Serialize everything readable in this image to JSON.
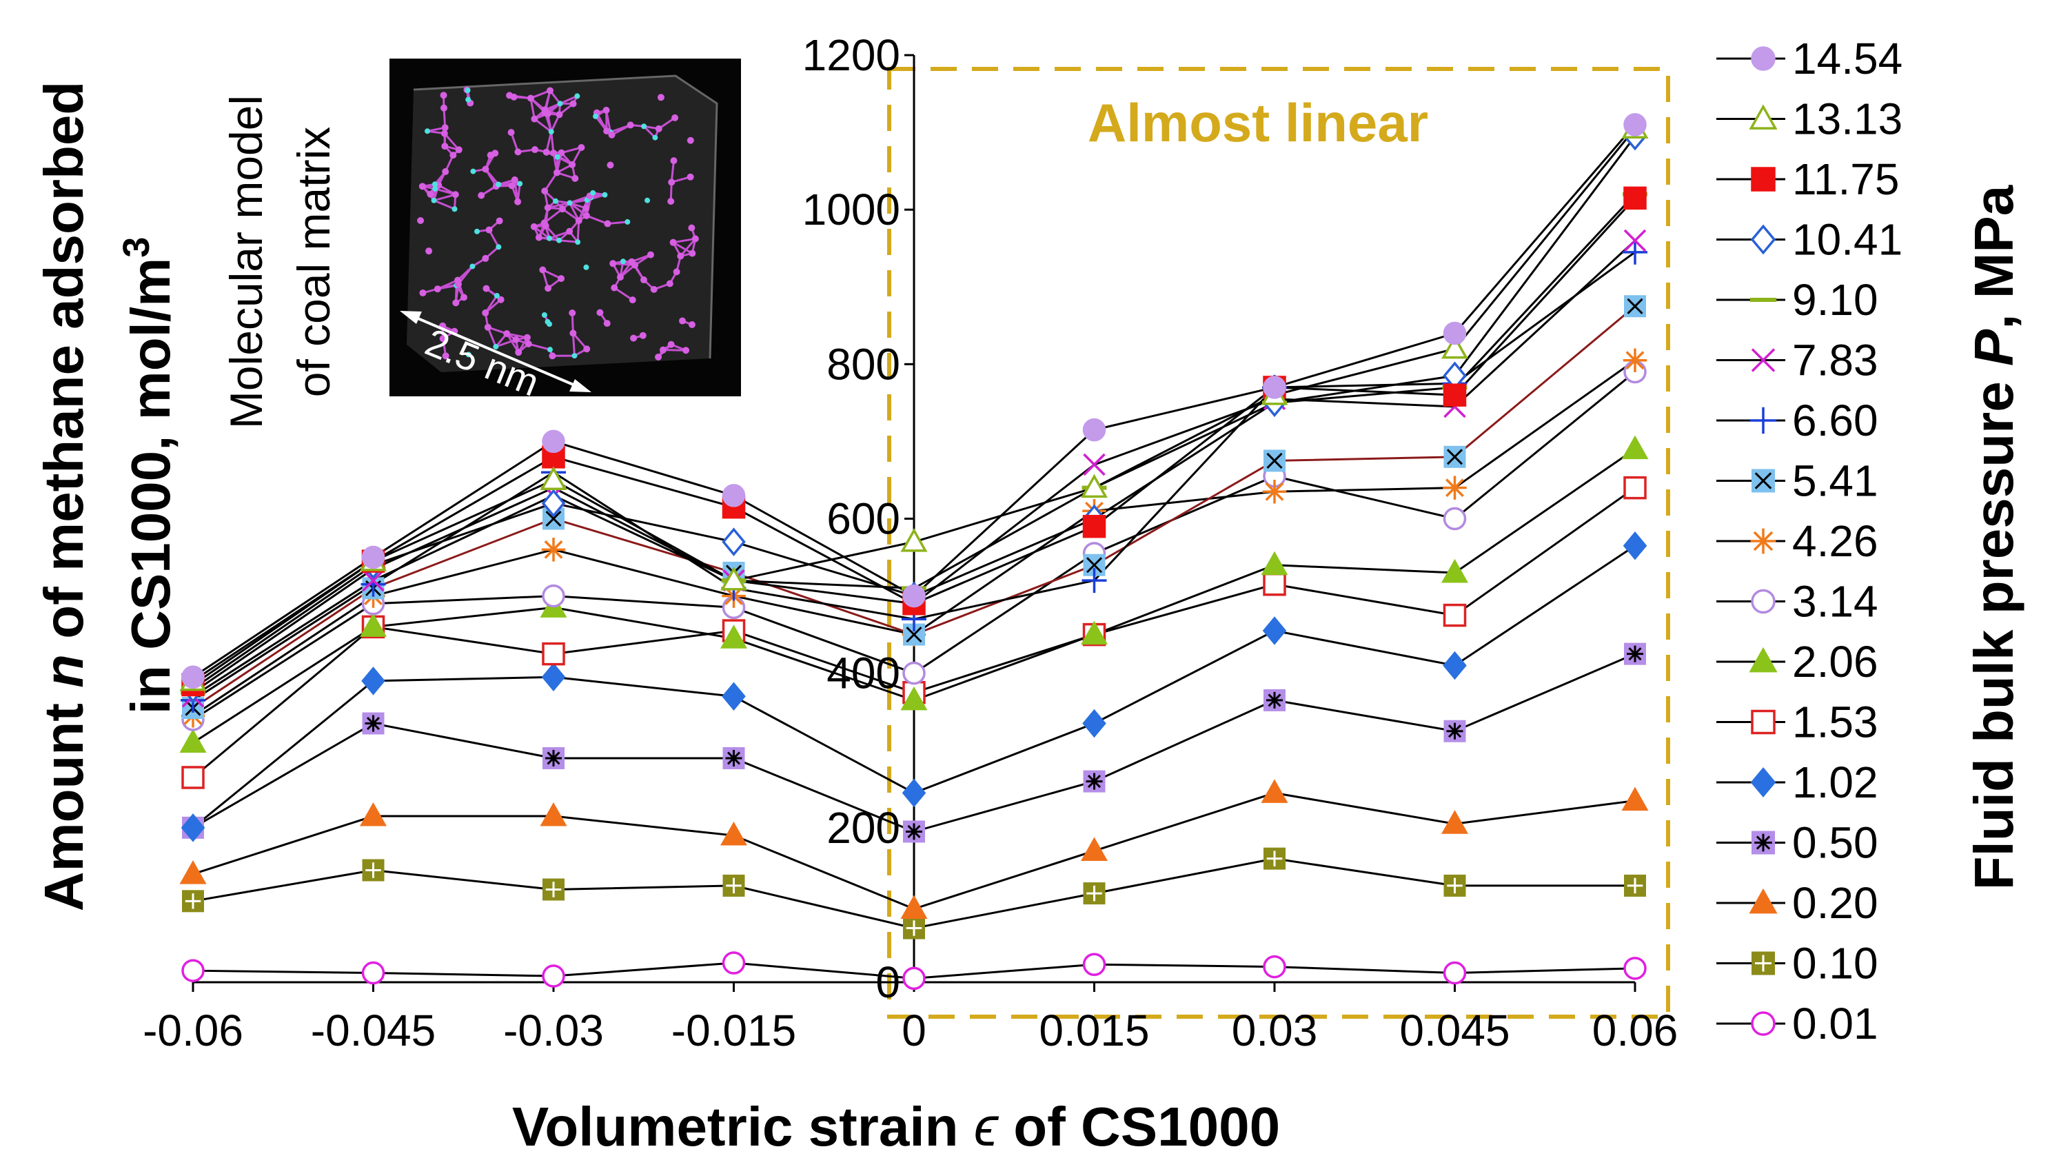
{
  "chart_data": {
    "type": "line",
    "x": [
      -0.06,
      -0.045,
      -0.03,
      -0.015,
      0,
      0.015,
      0.03,
      0.045,
      0.06
    ],
    "x_tick_labels": [
      "-0.06",
      "-0.045",
      "-0.03",
      "-0.015",
      "0",
      "0.015",
      "0.03",
      "0.045",
      "0.06"
    ],
    "y_ticks": [
      0,
      200,
      400,
      600,
      800,
      1000,
      1200
    ],
    "xlim": [
      -0.06,
      0.06
    ],
    "ylim": [
      0,
      1200
    ],
    "xlabel": "Volumetric strain ϵ of CS1000",
    "ylabel_line1": "Amount n of methane adsorbed",
    "ylabel_line2": "in CS1000, mol/m3",
    "ylabel_parts": [
      "Amount ",
      "n",
      " of methane adsorbed"
    ],
    "ylabel2_parts": [
      "in CS1000, mol/m",
      "3"
    ],
    "xlabel_parts": [
      "Volumetric strain ",
      "ϵ",
      " of CS1000"
    ],
    "legend_title": "Fluid bulk pressure P, MPa",
    "legend_title_parts": [
      "Fluid bulk pressure ",
      "P",
      ", MPa"
    ],
    "legend_position": "right",
    "annotation": "Almost linear",
    "annotation_color": "#d4aa1c",
    "inset": {
      "title_line1": "Molecular model",
      "title_line2": "of coal matrix",
      "scale_label": "2.5 nm"
    },
    "series": [
      {
        "name": "14.54",
        "marker": "circle",
        "color": "#c39bea",
        "fill": true,
        "line": "#000000",
        "values": [
          395,
          550,
          700,
          630,
          500,
          715,
          770,
          840,
          1110
        ]
      },
      {
        "name": "13.13",
        "marker": "triangle",
        "color": "#8db31a",
        "fill": false,
        "line": "#000000",
        "values": [
          390,
          545,
          650,
          520,
          570,
          640,
          760,
          820,
          1105
        ]
      },
      {
        "name": "11.75",
        "marker": "square",
        "color": "#ee1111",
        "fill": true,
        "line": "#000000",
        "values": [
          385,
          545,
          680,
          615,
          490,
          590,
          770,
          760,
          1015
        ]
      },
      {
        "name": "10.41",
        "marker": "diamond",
        "color": "#2a60d8",
        "fill": false,
        "line": "#000000",
        "values": [
          380,
          540,
          620,
          570,
          500,
          600,
          750,
          785,
          1095
        ]
      },
      {
        "name": "9.10",
        "marker": "hline",
        "color": "#8db31a",
        "fill": false,
        "line": "#000000",
        "values": [
          375,
          535,
          640,
          520,
          510,
          640,
          750,
          770,
          1020
        ]
      },
      {
        "name": "7.83",
        "marker": "x",
        "color": "#d020d0",
        "fill": false,
        "line": "#000000",
        "values": [
          370,
          520,
          630,
          520,
          490,
          670,
          755,
          745,
          960
        ]
      },
      {
        "name": "6.60",
        "marker": "plus",
        "color": "#1a3fd8",
        "fill": false,
        "line": "#000000",
        "values": [
          365,
          515,
          660,
          510,
          470,
          520,
          770,
          775,
          945
        ]
      },
      {
        "name": "5.41",
        "marker": "sqx",
        "color": "#7ec1ee",
        "fill": true,
        "line": "#8b1a1a",
        "values": [
          355,
          510,
          600,
          530,
          450,
          540,
          675,
          680,
          875
        ]
      },
      {
        "name": "4.26",
        "marker": "star",
        "color": "#f07a1a",
        "fill": false,
        "line": "#000000",
        "values": [
          345,
          500,
          560,
          500,
          450,
          610,
          635,
          640,
          805
        ]
      },
      {
        "name": "3.14",
        "marker": "circle",
        "color": "#b28adf",
        "fill": false,
        "line": "#000000",
        "values": [
          340,
          490,
          500,
          485,
          400,
          555,
          655,
          600,
          790
        ]
      },
      {
        "name": "2.06",
        "marker": "triangle",
        "color": "#8bc31a",
        "fill": true,
        "line": "#000000",
        "values": [
          310,
          460,
          485,
          445,
          365,
          450,
          540,
          530,
          690
        ]
      },
      {
        "name": "1.53",
        "marker": "square",
        "color": "#dd2222",
        "fill": false,
        "line": "#000000",
        "values": [
          265,
          460,
          425,
          455,
          375,
          450,
          515,
          475,
          640
        ]
      },
      {
        "name": "1.02",
        "marker": "diamond",
        "color": "#2a70e0",
        "fill": true,
        "line": "#000000",
        "values": [
          200,
          390,
          395,
          370,
          245,
          335,
          455,
          410,
          565
        ]
      },
      {
        "name": "0.50",
        "marker": "sqstar",
        "color": "#b48ee8",
        "fill": true,
        "line": "#000000",
        "values": [
          200,
          335,
          290,
          290,
          195,
          260,
          365,
          325,
          425
        ]
      },
      {
        "name": "0.20",
        "marker": "triangle",
        "color": "#f0701a",
        "fill": true,
        "line": "#000000",
        "values": [
          140,
          215,
          215,
          190,
          95,
          170,
          245,
          205,
          235
        ]
      },
      {
        "name": "0.10",
        "marker": "sqplus",
        "color": "#8b8b1a",
        "fill": true,
        "line": "#000000",
        "values": [
          105,
          145,
          120,
          125,
          70,
          115,
          160,
          125,
          125
        ]
      },
      {
        "name": "0.01",
        "marker": "circle",
        "color": "#e020e0",
        "fill": false,
        "line": "#000000",
        "values": [
          15,
          12,
          8,
          25,
          5,
          23,
          20,
          12,
          18
        ]
      }
    ]
  }
}
